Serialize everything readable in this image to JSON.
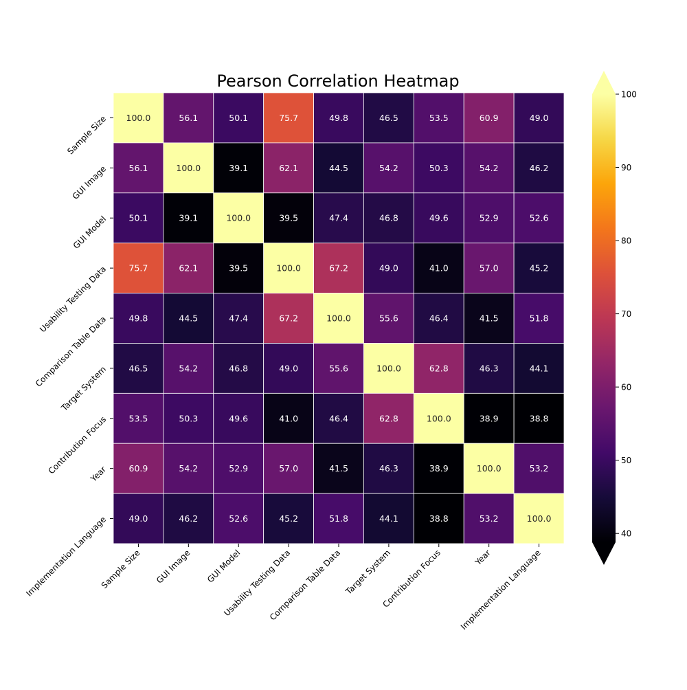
{
  "chart_data": {
    "type": "heatmap",
    "title": "Pearson Correlation Heatmap",
    "xlabel": "",
    "ylabel": "",
    "variables": [
      "Sample Size",
      "GUI Image",
      "GUI Model",
      "Usability Testing Data",
      "Comparison Table Data",
      "Target System",
      "Contribution Focus",
      "Year",
      "Implementation Language"
    ],
    "matrix": [
      [
        100.0,
        56.1,
        50.1,
        75.7,
        49.8,
        46.5,
        53.5,
        60.9,
        49.0
      ],
      [
        56.1,
        100.0,
        39.1,
        62.1,
        44.5,
        54.2,
        50.3,
        54.2,
        46.2
      ],
      [
        50.1,
        39.1,
        100.0,
        39.5,
        47.4,
        46.8,
        49.6,
        52.9,
        52.6
      ],
      [
        75.7,
        62.1,
        39.5,
        100.0,
        67.2,
        49.0,
        41.0,
        57.0,
        45.2
      ],
      [
        49.8,
        44.5,
        47.4,
        67.2,
        100.0,
        55.6,
        46.4,
        41.5,
        51.8
      ],
      [
        46.5,
        54.2,
        46.8,
        49.0,
        55.6,
        100.0,
        62.8,
        46.3,
        44.1
      ],
      [
        53.5,
        50.3,
        49.6,
        41.0,
        46.4,
        62.8,
        100.0,
        38.9,
        38.8
      ],
      [
        60.9,
        54.2,
        52.9,
        57.0,
        41.5,
        46.3,
        38.9,
        100.0,
        53.2
      ],
      [
        49.0,
        46.2,
        52.6,
        45.2,
        51.8,
        44.1,
        38.8,
        53.2,
        100.0
      ]
    ],
    "value_format": "one-decimal",
    "colormap": "inferno",
    "vmin": 38.8,
    "vmax": 100,
    "colorbar": {
      "ticks": [
        40,
        50,
        60,
        70,
        80,
        90,
        100
      ],
      "extend": "both",
      "placement": "right"
    },
    "cell_divider_color": "#ffffff",
    "legend": "none",
    "grid": false
  }
}
